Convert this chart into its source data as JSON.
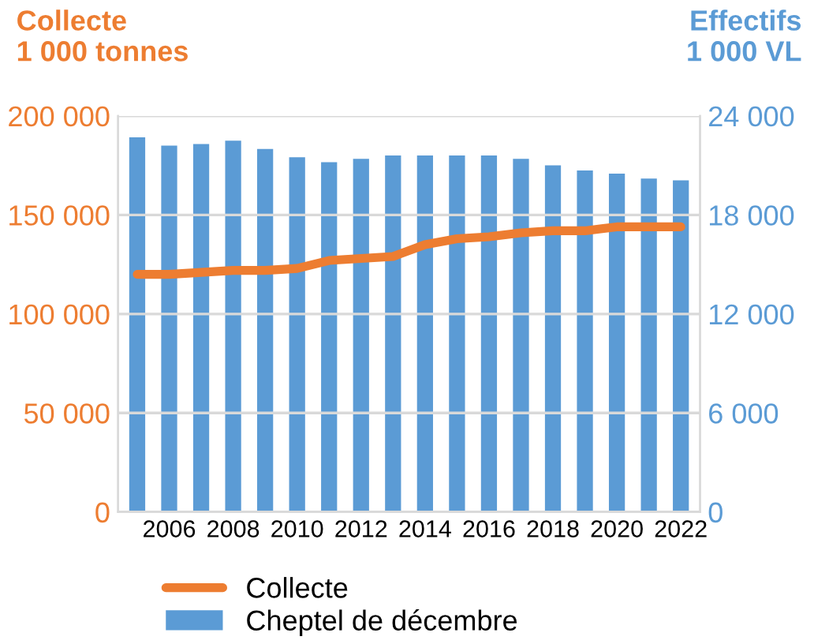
{
  "chart_data": {
    "type": "bar",
    "ylabel": "Collecte\n1 000 tonnes",
    "y2label": "Effectifs\n1 000 VL",
    "categories": [
      null,
      "2006",
      null,
      "2008",
      null,
      "2010",
      null,
      "2012",
      null,
      "2014",
      null,
      "2016",
      null,
      "2018",
      null,
      "2020",
      null,
      "2022"
    ],
    "series": [
      {
        "name": "Collecte",
        "type": "line",
        "axis": "y",
        "color": "#ed7d31",
        "values": [
          120000,
          120000,
          121000,
          122000,
          122000,
          123000,
          127000,
          128000,
          129000,
          135000,
          138000,
          139000,
          141000,
          142000,
          142000,
          144000,
          144000,
          144000
        ]
      },
      {
        "name": "Cheptel de décembre",
        "axis": "y2",
        "color": "#5b9bd5",
        "values": [
          22700,
          22200,
          22300,
          22500,
          22000,
          21500,
          21200,
          21400,
          21600,
          21600,
          21600,
          21600,
          21400,
          21000,
          20700,
          20500,
          20200,
          20100
        ]
      }
    ],
    "ylim": [
      0,
      200000
    ],
    "yticks": [
      {
        "value": 0,
        "label": "0"
      },
      {
        "value": 50000,
        "label": "50 000"
      },
      {
        "value": 100000,
        "label": "100 000"
      },
      {
        "value": 150000,
        "label": "150 000"
      },
      {
        "value": 200000,
        "label": "200 000"
      }
    ],
    "y2lim": [
      0,
      24000
    ],
    "y2ticks": [
      {
        "value": 0,
        "label": "0"
      },
      {
        "value": 6000,
        "label": "6 000"
      },
      {
        "value": 12000,
        "label": "12 000"
      },
      {
        "value": 18000,
        "label": "18 000"
      },
      {
        "value": 24000,
        "label": "24 000"
      }
    ],
    "grid": "y",
    "legend": "bottom",
    "marker": "none",
    "line_style": "solid"
  }
}
